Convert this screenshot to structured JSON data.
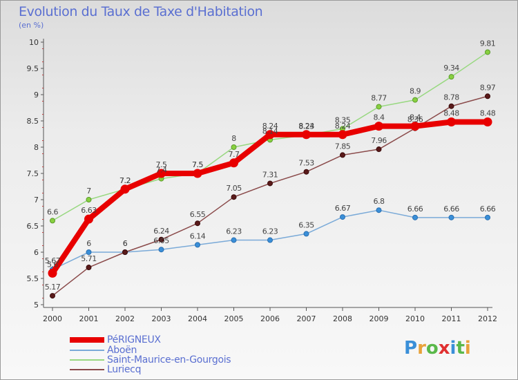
{
  "header": {
    "title": "Evolution du Taux de Taxe d'Habitation",
    "subtitle": "(en %)"
  },
  "logo": {
    "text": "Proxiti",
    "letters": [
      "P",
      "r",
      "o",
      "x",
      "i",
      "t",
      "i"
    ],
    "colors": [
      "#3a8fd8",
      "#e8a23a",
      "#5ab84a",
      "#e03030",
      "#3a8fd8",
      "#5ab84a",
      "#e8a23a"
    ]
  },
  "chart_data": {
    "type": "line",
    "title": "Evolution du Taux de Taxe d'Habitation",
    "ylabel": "(en %)",
    "xlabel": "",
    "x": [
      "2000",
      "2001",
      "2002",
      "2003",
      "2004",
      "2005",
      "2006",
      "2007",
      "2008",
      "2009",
      "2010",
      "2011",
      "2012"
    ],
    "ylim": [
      5,
      10
    ],
    "yticks": [
      "5",
      "5.5",
      "6",
      "6.5",
      "7",
      "7.5",
      "8",
      "8.5",
      "9",
      "9.5",
      "10"
    ],
    "grid": false,
    "legend_position": "bottom-left",
    "series": [
      {
        "name": "PéRIGNEUX",
        "color": "#e80000",
        "values": [
          5.6,
          6.63,
          7.2,
          7.5,
          7.5,
          7.7,
          8.24,
          8.24,
          8.24,
          8.4,
          8.4,
          8.48,
          8.48
        ],
        "labels": [
          "5.6",
          "6.63",
          "7.2",
          "7.5",
          "7.5",
          "7.7",
          "8.24",
          "8.24",
          "8.24",
          "8.4",
          "8.4",
          "8.48",
          "8.48"
        ]
      },
      {
        "name": "Aboën",
        "color": "#7aaad8",
        "values": [
          5.67,
          6,
          6,
          6.05,
          6.14,
          6.23,
          6.23,
          6.35,
          6.67,
          6.8,
          6.66,
          6.66,
          6.66
        ],
        "labels": [
          "5.67",
          "6",
          "6",
          "6.05",
          "6.14",
          "6.23",
          "6.23",
          "6.35",
          "6.67",
          "6.8",
          "6.66",
          "6.66",
          "6.66"
        ]
      },
      {
        "name": "Saint-Maurice-en-Gourgois",
        "color": "#98d880",
        "values": [
          6.6,
          7,
          7.2,
          7.4,
          7.5,
          8,
          8.14,
          8.23,
          8.35,
          8.77,
          8.9,
          9.34,
          9.81
        ],
        "labels": [
          "6.6",
          "7",
          "7.2",
          "7.4",
          "7.5",
          "8",
          "8.14",
          "8.23",
          "8.35",
          "8.77",
          "8.9",
          "9.34",
          "9.81"
        ]
      },
      {
        "name": "Luriecq",
        "color": "#8a4a4a",
        "values": [
          5.17,
          5.71,
          6,
          6.24,
          6.55,
          7.05,
          7.31,
          7.53,
          7.85,
          7.96,
          8.36,
          8.78,
          8.97
        ],
        "labels": [
          "5.17",
          "5.71",
          "6",
          "6.24",
          "6.55",
          "7.05",
          "7.31",
          "7.53",
          "7.85",
          "7.96",
          "8.36",
          "8.78",
          "8.97"
        ]
      }
    ]
  }
}
